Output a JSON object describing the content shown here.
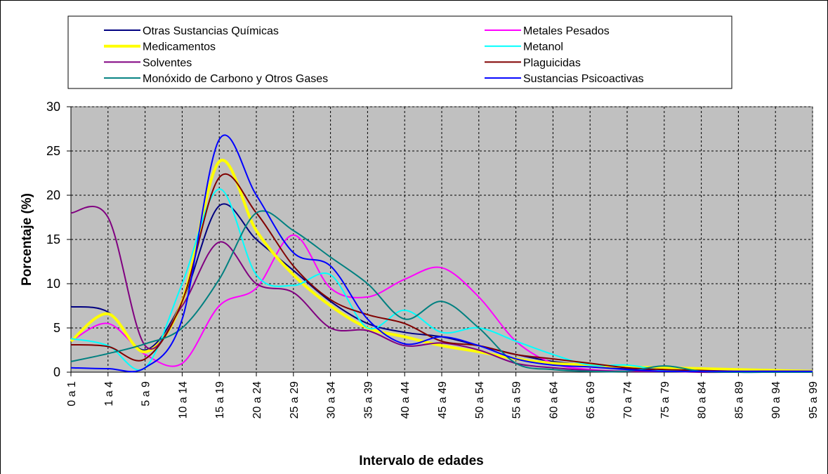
{
  "chart_data": {
    "type": "line",
    "x_label": "Intervalo de edades",
    "y_label": "Porcentaje (%)",
    "categories": [
      "0 a 1",
      "1 a 4",
      "5 a 9",
      "10 a 14",
      "15 a 19",
      "20 a 24",
      "25 a 29",
      "30 a 34",
      "35 a 39",
      "40 a 44",
      "45 a 49",
      "50 a 54",
      "55 a 59",
      "60 a 64",
      "65 a 69",
      "70 a 74",
      "75 a 79",
      "80 a 84",
      "85 a 89",
      "90 a 94",
      "95 a 99"
    ],
    "series": [
      {
        "name": "Otras Sustancias Químicas",
        "color": "#000080",
        "values": [
          7.4,
          6.8,
          2.5,
          8,
          18.8,
          15,
          11.5,
          8,
          5.5,
          4.5,
          4,
          3,
          2,
          1.2,
          0.8,
          0.4,
          0.3,
          0.2,
          0.1,
          0.1,
          0.1
        ]
      },
      {
        "name": "Metales Pesados",
        "color": "#FF00FF",
        "values": [
          3.5,
          5.5,
          2,
          1,
          7.5,
          9.5,
          15.5,
          9.5,
          8.5,
          10.5,
          11.8,
          8.5,
          3.5,
          1,
          0.3,
          0.1,
          0.1,
          0.1,
          0,
          0,
          0
        ]
      },
      {
        "name": "Medicamentos",
        "color": "#FFFF00",
        "values": [
          3.5,
          6.6,
          2.3,
          8,
          23.8,
          16,
          11,
          7.5,
          5,
          4,
          3,
          2.3,
          1.5,
          1,
          0.8,
          0.6,
          0.5,
          0.4,
          0.3,
          0.2,
          0.1
        ]
      },
      {
        "name": "Metanol",
        "color": "#00FFFF",
        "values": [
          3.8,
          3,
          0.5,
          10,
          20.7,
          11,
          9.8,
          11,
          5,
          7,
          4.5,
          5,
          3.5,
          2,
          0.8,
          0.8,
          0.2,
          0.1,
          0,
          0,
          0
        ]
      },
      {
        "name": "Solventes",
        "color": "#800080",
        "values": [
          18,
          17.5,
          3,
          7.5,
          14.7,
          10,
          9,
          5,
          4.7,
          3,
          3.3,
          2.5,
          1,
          0.5,
          0.2,
          0.1,
          0.1,
          0,
          0,
          0,
          0
        ]
      },
      {
        "name": "Plaguicidas",
        "color": "#800000",
        "values": [
          3.1,
          2.9,
          1.5,
          8,
          22,
          18,
          12,
          8.2,
          6.5,
          5.5,
          3.5,
          3,
          2,
          1.5,
          1,
          0.5,
          0.3,
          0.2,
          0.1,
          0.1,
          0.1
        ]
      },
      {
        "name": "Monóxido de Carbono  y Otros Gases",
        "color": "#008080",
        "values": [
          1.2,
          2.1,
          3.2,
          5,
          10.5,
          18,
          16,
          13,
          10,
          6,
          8,
          5,
          1,
          0.3,
          0.1,
          0.1,
          0.7,
          0.1,
          0,
          0,
          0
        ]
      },
      {
        "name": "Sustancias Psicoactivas",
        "color": "#0000FF",
        "values": [
          0.5,
          0.4,
          0.5,
          6,
          26.3,
          20,
          13.5,
          12,
          6,
          3.2,
          4,
          3,
          1.5,
          0.8,
          0.6,
          0.3,
          0.1,
          0.1,
          0.1,
          0.1,
          0.1
        ]
      }
    ],
    "ylim": [
      0,
      30
    ],
    "yticks": [
      0,
      5,
      10,
      15,
      20,
      25,
      30
    ],
    "grid": true
  }
}
